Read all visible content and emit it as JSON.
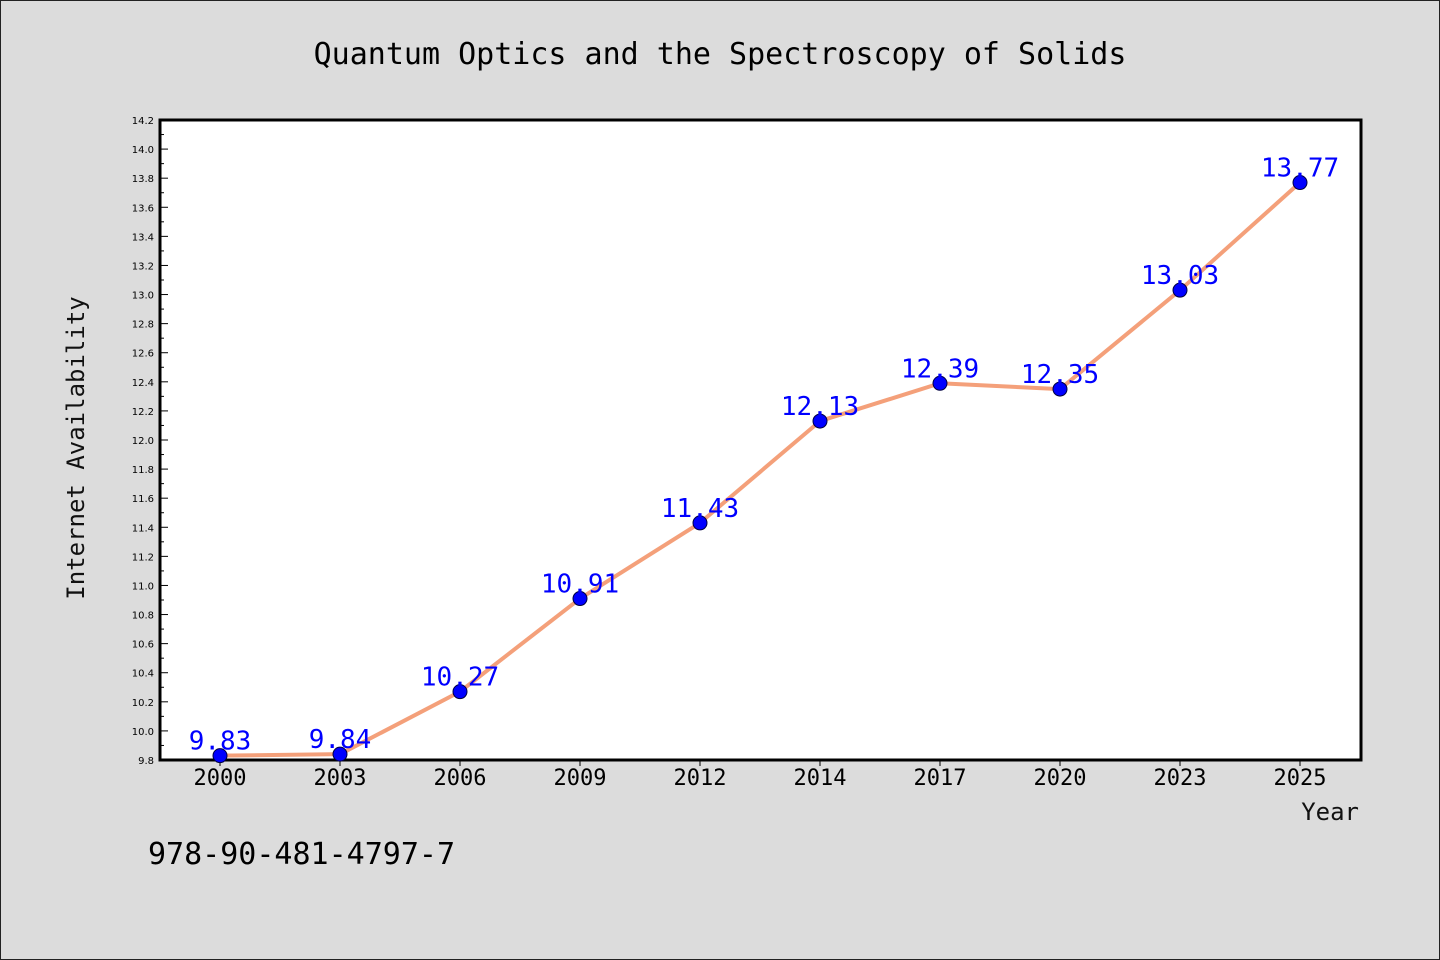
{
  "chart_data": {
    "type": "line",
    "title": "Quantum Optics and the Spectroscopy of Solids",
    "xlabel": "Year",
    "ylabel": "Internet Availability",
    "categories": [
      "2000",
      "2003",
      "2006",
      "2009",
      "2012",
      "2014",
      "2017",
      "2020",
      "2023",
      "2025"
    ],
    "series": [
      {
        "values": [
          9.83,
          9.84,
          10.27,
          10.91,
          11.43,
          12.13,
          12.39,
          12.35,
          13.03,
          13.77
        ],
        "labels": [
          "9.83",
          "9.84",
          "10.27",
          "10.91",
          "11.43",
          "12.13",
          "12.39",
          "12.35",
          "13.03",
          "13.77"
        ],
        "line_color": "#f4a07a",
        "marker_color": "#0000ff"
      }
    ],
    "ylim": [
      9.8,
      14.2
    ],
    "yticks": [
      "9.8",
      "10.0",
      "10.2",
      "10.4",
      "10.6",
      "10.8",
      "11.0",
      "11.2",
      "11.4",
      "11.6",
      "11.8",
      "12.0",
      "12.2",
      "12.4",
      "12.6",
      "12.8",
      "13.0",
      "13.2",
      "13.4",
      "13.6",
      "13.8",
      "14.0",
      "14.2"
    ],
    "grid": false,
    "legend": "none"
  },
  "footer": {
    "isbn": "978-90-481-4797-7"
  },
  "colors": {
    "background": "#dcdcdc",
    "plot_background": "#ffffff",
    "line": "#f4a07a",
    "marker": "#0000ff",
    "data_label": "#0000ff"
  }
}
